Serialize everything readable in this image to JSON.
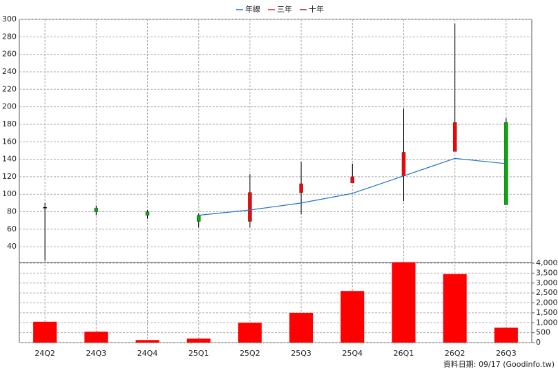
{
  "chart_data": {
    "type": "candlestick",
    "categories": [
      "24Q2",
      "24Q3",
      "24Q4",
      "25Q1",
      "25Q2",
      "25Q3",
      "25Q4",
      "26Q1",
      "26Q2",
      "26Q3"
    ],
    "open": [
      85,
      84,
      80,
      76,
      69,
      102,
      113,
      121,
      149,
      182
    ],
    "high": [
      90,
      87,
      82,
      78,
      123,
      137,
      135,
      198,
      295,
      187
    ],
    "low": [
      24,
      76,
      72,
      62,
      62,
      77,
      113,
      92,
      149,
      88
    ],
    "close": [
      85,
      80,
      76,
      69,
      102,
      112,
      120,
      148,
      182,
      88
    ],
    "up_color": "#ff0000",
    "down_color": "#00b000",
    "series": [
      {
        "name": "年線",
        "color": "#1f6fd0",
        "values": [
          null,
          null,
          null,
          76,
          82,
          90,
          101,
          121,
          141,
          135
        ]
      },
      {
        "name": "三年",
        "color": "#e02020",
        "values": [
          null,
          null,
          null,
          null,
          null,
          null,
          null,
          null,
          null,
          null
        ]
      },
      {
        "name": "十年",
        "color": "#902060",
        "values": [
          null,
          null,
          null,
          null,
          null,
          null,
          null,
          null,
          null,
          null
        ]
      }
    ],
    "ylim": [
      22,
      300
    ],
    "yticks": [
      40,
      60,
      80,
      100,
      120,
      140,
      160,
      180,
      200,
      220,
      240,
      260,
      280,
      300
    ],
    "volume": {
      "color": "#ff0000",
      "values": [
        1050,
        550,
        130,
        200,
        1000,
        1500,
        2600,
        4050,
        3450,
        750
      ],
      "y2lim": [
        0,
        4000
      ],
      "y2ticks": [
        0,
        500,
        {
          "value": 1000,
          "label": "1,000"
        },
        {
          "value": 1500,
          "label": "1,500"
        },
        {
          "value": 2000,
          "label": "2,000"
        },
        {
          "value": 2500,
          "label": "2,500"
        },
        {
          "value": 3000,
          "label": "3,000"
        },
        {
          "value": 3500,
          "label": "3,500"
        },
        {
          "value": 4000,
          "label": "4,000"
        }
      ]
    },
    "grid": true,
    "source": "資料日期: 09/17  (Goodinfo.tw)"
  }
}
